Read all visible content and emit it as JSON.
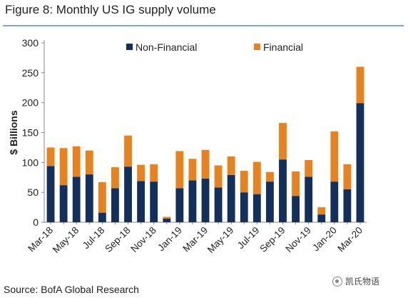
{
  "figure": {
    "title": "Figure 8: Monthly US IG supply volume",
    "source": "Source: BofA Global Research",
    "watermark": "凯氏物语"
  },
  "colors": {
    "non_financial": "#13305c",
    "financial": "#e8821e",
    "title_rule": "#7fa6c8",
    "axis": "#888888"
  },
  "chart_data": {
    "type": "bar",
    "stacked": true,
    "ylabel": "$ Billions",
    "xlabel": "",
    "ylim": [
      0,
      300
    ],
    "yticks": [
      0,
      50,
      100,
      150,
      200,
      250,
      300
    ],
    "grid": false,
    "legend_placement": "top",
    "categories": [
      "Mar-18",
      "Apr-18",
      "May-18",
      "Jun-18",
      "Jul-18",
      "Aug-18",
      "Sep-18",
      "Oct-18",
      "Nov-18",
      "Dec-18",
      "Jan-19",
      "Feb-19",
      "Mar-19",
      "Apr-19",
      "May-19",
      "Jun-19",
      "Jul-19",
      "Aug-19",
      "Sep-19",
      "Oct-19",
      "Nov-19",
      "Dec-19",
      "Jan-20",
      "Feb-20",
      "Mar-20"
    ],
    "tick_labels": [
      "Mar-18",
      "",
      "May-18",
      "",
      "Jul-18",
      "",
      "Sep-18",
      "",
      "Nov-18",
      "",
      "Jan-19",
      "",
      "Mar-19",
      "",
      "May-19",
      "",
      "Jul-19",
      "",
      "Sep-19",
      "",
      "Nov-19",
      "",
      "Jan-20",
      "",
      "Mar-20"
    ],
    "series": [
      {
        "name": "Non-Financial",
        "values": [
          94,
          62,
          76,
          80,
          16,
          57,
          93,
          69,
          68,
          6,
          57,
          70,
          73,
          58,
          79,
          50,
          47,
          68,
          105,
          44,
          76,
          13,
          68,
          55,
          199
        ]
      },
      {
        "name": "Financial",
        "values": [
          31,
          62,
          51,
          40,
          51,
          35,
          52,
          27,
          29,
          3,
          62,
          36,
          48,
          37,
          31,
          36,
          54,
          16,
          61,
          41,
          28,
          12,
          84,
          42,
          61
        ]
      }
    ]
  }
}
